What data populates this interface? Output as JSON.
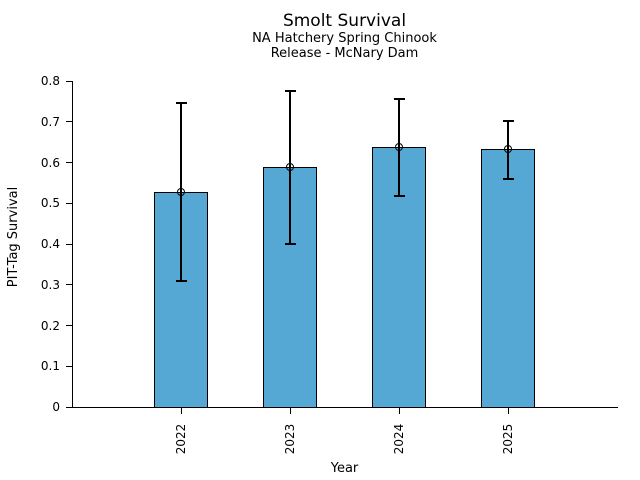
{
  "figure": {
    "title": "Smolt Survival",
    "subtitle_line1": "NA Hatchery Spring Chinook",
    "subtitle_line2": "Release - McNary Dam"
  },
  "chart_data": {
    "type": "bar",
    "title": "Smolt Survival",
    "subtitle": [
      "NA Hatchery Spring Chinook",
      "Release - McNary Dam"
    ],
    "categories": [
      "2022",
      "2023",
      "2024",
      "2025"
    ],
    "values": [
      0.527,
      0.588,
      0.637,
      0.633
    ],
    "error_low": [
      0.31,
      0.401,
      0.519,
      0.559
    ],
    "error_high": [
      0.745,
      0.776,
      0.757,
      0.703
    ],
    "xlabel": "Year",
    "ylabel": "PIT-Tag Survival",
    "ylim": [
      0,
      0.8
    ],
    "yticks": [
      0,
      0.1,
      0.2,
      0.3,
      0.4,
      0.5,
      0.6,
      0.7,
      0.8
    ],
    "ytick_labels": [
      "0",
      "0.1",
      "0.2",
      "0.3",
      "0.4",
      "0.5",
      "0.6",
      "0.7",
      "0.8"
    ],
    "xtick_rotation_deg": 90,
    "grid": false,
    "legend": null,
    "marker": "open-circle",
    "bar_color": "#56a8d4",
    "bar_edge_color": "#000000",
    "error_color": "#000000",
    "background_color": "#ffffff"
  }
}
